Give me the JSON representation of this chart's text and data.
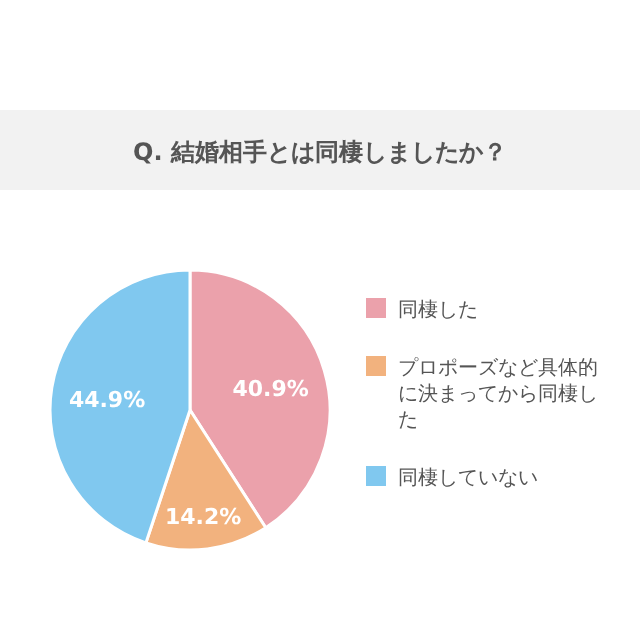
{
  "chart_data": {
    "type": "pie",
    "title": "Q. 結婚相手とは同棲しましたか？",
    "categories": [
      "同棲した",
      "プロポーズなど具体的に決まってから同棲した",
      "同棲していない"
    ],
    "values": [
      40.9,
      14.2,
      44.9
    ],
    "colors": [
      "#eba1ab",
      "#f2b27e",
      "#80c8ef"
    ],
    "value_labels": [
      "40.9%",
      "14.2%",
      "44.9%"
    ],
    "legend": "right"
  }
}
